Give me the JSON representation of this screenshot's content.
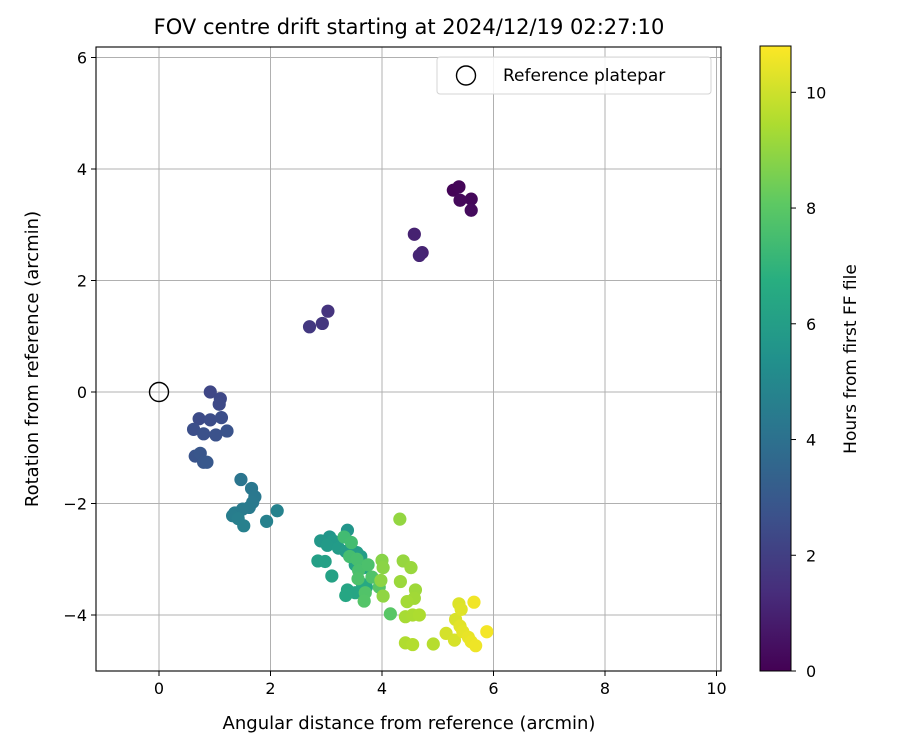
{
  "chart_data": {
    "type": "scatter",
    "title": "FOV centre drift starting at 2024/12/19 02:27:10",
    "xlabel": "Angular distance from reference (arcmin)",
    "ylabel": "Rotation from reference (arcmin)",
    "xlim": [
      -1.15,
      10.1
    ],
    "ylim": [
      -5.0,
      6.2
    ],
    "xticks": [
      "0",
      "2",
      "4",
      "6",
      "8",
      "10"
    ],
    "yticks": [
      "−4",
      "−2",
      "0",
      "2",
      "4",
      "6"
    ],
    "grid": true,
    "legend": {
      "position": "top-right",
      "entries": [
        "Reference platepar"
      ]
    },
    "reference_point": {
      "x": 0,
      "y": 0
    },
    "colorbar": {
      "label": "Hours from first FF file",
      "range": [
        0,
        10.8
      ],
      "ticks": [
        "0",
        "2",
        "4",
        "6",
        "8",
        "10"
      ],
      "colormap": "viridis"
    },
    "points": [
      {
        "x": 5.28,
        "y": 3.62,
        "h": 0.1
      },
      {
        "x": 5.38,
        "y": 3.68,
        "h": 0.15
      },
      {
        "x": 5.6,
        "y": 3.46,
        "h": 0.2
      },
      {
        "x": 5.4,
        "y": 3.44,
        "h": 0.25
      },
      {
        "x": 5.6,
        "y": 3.26,
        "h": 0.3
      },
      {
        "x": 4.58,
        "y": 2.83,
        "h": 1.0
      },
      {
        "x": 4.72,
        "y": 2.5,
        "h": 1.05
      },
      {
        "x": 4.67,
        "y": 2.45,
        "h": 1.1
      },
      {
        "x": 3.03,
        "y": 1.45,
        "h": 1.6
      },
      {
        "x": 2.93,
        "y": 1.23,
        "h": 1.7
      },
      {
        "x": 2.7,
        "y": 1.17,
        "h": 1.75
      },
      {
        "x": 0.92,
        "y": 0.0,
        "h": 2.3
      },
      {
        "x": 1.1,
        "y": -0.12,
        "h": 2.35
      },
      {
        "x": 1.08,
        "y": -0.22,
        "h": 2.4
      },
      {
        "x": 0.72,
        "y": -0.48,
        "h": 2.45
      },
      {
        "x": 0.92,
        "y": -0.5,
        "h": 2.5
      },
      {
        "x": 1.12,
        "y": -0.46,
        "h": 2.55
      },
      {
        "x": 0.62,
        "y": -0.67,
        "h": 2.6
      },
      {
        "x": 0.8,
        "y": -0.75,
        "h": 2.65
      },
      {
        "x": 1.02,
        "y": -0.77,
        "h": 2.7
      },
      {
        "x": 1.22,
        "y": -0.7,
        "h": 2.75
      },
      {
        "x": 0.65,
        "y": -1.15,
        "h": 2.8
      },
      {
        "x": 0.74,
        "y": -1.1,
        "h": 2.85
      },
      {
        "x": 0.8,
        "y": -1.26,
        "h": 2.9
      },
      {
        "x": 0.86,
        "y": -1.26,
        "h": 2.95
      },
      {
        "x": 1.47,
        "y": -1.57,
        "h": 4.2
      },
      {
        "x": 1.66,
        "y": -1.73,
        "h": 4.25
      },
      {
        "x": 1.72,
        "y": -1.88,
        "h": 4.3
      },
      {
        "x": 1.68,
        "y": -1.98,
        "h": 4.35
      },
      {
        "x": 1.62,
        "y": -2.07,
        "h": 4.4
      },
      {
        "x": 1.5,
        "y": -2.1,
        "h": 4.45
      },
      {
        "x": 1.36,
        "y": -2.17,
        "h": 4.5
      },
      {
        "x": 1.32,
        "y": -2.22,
        "h": 4.55
      },
      {
        "x": 1.42,
        "y": -2.27,
        "h": 4.6
      },
      {
        "x": 1.52,
        "y": -2.4,
        "h": 4.65
      },
      {
        "x": 1.93,
        "y": -2.32,
        "h": 4.7
      },
      {
        "x": 2.12,
        "y": -2.13,
        "h": 4.75
      },
      {
        "x": 3.38,
        "y": -2.48,
        "h": 5.6
      },
      {
        "x": 3.06,
        "y": -2.6,
        "h": 5.65
      },
      {
        "x": 2.9,
        "y": -2.67,
        "h": 5.7
      },
      {
        "x": 3.12,
        "y": -2.67,
        "h": 5.75
      },
      {
        "x": 3.02,
        "y": -2.75,
        "h": 5.8
      },
      {
        "x": 3.22,
        "y": -2.8,
        "h": 5.85
      },
      {
        "x": 3.35,
        "y": -2.86,
        "h": 5.9
      },
      {
        "x": 3.55,
        "y": -2.88,
        "h": 5.95
      },
      {
        "x": 3.62,
        "y": -2.95,
        "h": 6.0
      },
      {
        "x": 2.85,
        "y": -3.03,
        "h": 6.05
      },
      {
        "x": 2.98,
        "y": -3.04,
        "h": 6.1
      },
      {
        "x": 3.1,
        "y": -3.3,
        "h": 6.15
      },
      {
        "x": 3.52,
        "y": -3.1,
        "h": 6.2
      },
      {
        "x": 3.68,
        "y": -3.15,
        "h": 6.25
      },
      {
        "x": 3.38,
        "y": -3.55,
        "h": 6.3
      },
      {
        "x": 3.52,
        "y": -3.6,
        "h": 6.35
      },
      {
        "x": 3.35,
        "y": -3.65,
        "h": 6.4
      },
      {
        "x": 3.72,
        "y": -3.5,
        "h": 6.45
      },
      {
        "x": 3.65,
        "y": -3.45,
        "h": 6.5
      },
      {
        "x": 3.32,
        "y": -2.6,
        "h": 7.4
      },
      {
        "x": 3.45,
        "y": -2.7,
        "h": 7.45
      },
      {
        "x": 3.42,
        "y": -2.95,
        "h": 7.5
      },
      {
        "x": 3.55,
        "y": -3.0,
        "h": 7.55
      },
      {
        "x": 3.58,
        "y": -3.2,
        "h": 7.6
      },
      {
        "x": 3.75,
        "y": -3.1,
        "h": 7.65
      },
      {
        "x": 3.57,
        "y": -3.35,
        "h": 7.7
      },
      {
        "x": 3.82,
        "y": -3.32,
        "h": 7.75
      },
      {
        "x": 3.7,
        "y": -3.6,
        "h": 7.8
      },
      {
        "x": 3.68,
        "y": -3.75,
        "h": 7.85
      },
      {
        "x": 3.95,
        "y": -3.5,
        "h": 7.9
      },
      {
        "x": 4.15,
        "y": -3.98,
        "h": 7.95
      },
      {
        "x": 4.0,
        "y": -3.02,
        "h": 8.8
      },
      {
        "x": 4.02,
        "y": -3.15,
        "h": 8.85
      },
      {
        "x": 3.98,
        "y": -3.38,
        "h": 8.9
      },
      {
        "x": 4.02,
        "y": -3.66,
        "h": 8.95
      },
      {
        "x": 4.32,
        "y": -2.28,
        "h": 9.0
      },
      {
        "x": 4.38,
        "y": -3.03,
        "h": 9.05
      },
      {
        "x": 4.52,
        "y": -3.15,
        "h": 9.1
      },
      {
        "x": 4.33,
        "y": -3.4,
        "h": 9.15
      },
      {
        "x": 4.6,
        "y": -3.55,
        "h": 9.2
      },
      {
        "x": 4.58,
        "y": -3.7,
        "h": 9.25
      },
      {
        "x": 4.45,
        "y": -3.76,
        "h": 9.3
      },
      {
        "x": 4.42,
        "y": -4.03,
        "h": 9.35
      },
      {
        "x": 4.55,
        "y": -4.0,
        "h": 9.4
      },
      {
        "x": 4.67,
        "y": -4.0,
        "h": 9.45
      },
      {
        "x": 4.42,
        "y": -4.5,
        "h": 9.5
      },
      {
        "x": 4.55,
        "y": -4.53,
        "h": 9.55
      },
      {
        "x": 4.92,
        "y": -4.52,
        "h": 9.6
      },
      {
        "x": 5.15,
        "y": -4.33,
        "h": 10.1
      },
      {
        "x": 5.3,
        "y": -4.45,
        "h": 10.15
      },
      {
        "x": 5.32,
        "y": -4.08,
        "h": 10.2
      },
      {
        "x": 5.38,
        "y": -3.8,
        "h": 10.25
      },
      {
        "x": 5.42,
        "y": -3.9,
        "h": 10.3
      },
      {
        "x": 5.4,
        "y": -4.2,
        "h": 10.35
      },
      {
        "x": 5.45,
        "y": -4.3,
        "h": 10.4
      },
      {
        "x": 5.55,
        "y": -4.4,
        "h": 10.45
      },
      {
        "x": 5.6,
        "y": -4.48,
        "h": 10.5
      },
      {
        "x": 5.68,
        "y": -4.55,
        "h": 10.55
      },
      {
        "x": 5.65,
        "y": -3.77,
        "h": 10.6
      },
      {
        "x": 5.88,
        "y": -4.3,
        "h": 10.65
      }
    ]
  }
}
